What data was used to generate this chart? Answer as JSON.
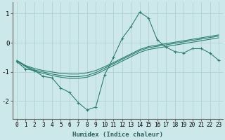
{
  "xlabel": "Humidex (Indice chaleur)",
  "bg_color": "#cce8ea",
  "grid_color": "#aacccc",
  "line_color": "#2e7d72",
  "x": [
    0,
    1,
    2,
    3,
    4,
    5,
    6,
    7,
    8,
    9,
    10,
    11,
    12,
    13,
    14,
    15,
    16,
    17,
    18,
    19,
    20,
    21,
    22,
    23
  ],
  "line1": [
    -0.65,
    -0.9,
    -0.95,
    -1.15,
    -1.2,
    -1.55,
    -1.7,
    -2.05,
    -2.3,
    -2.2,
    -1.1,
    -0.5,
    0.15,
    0.55,
    1.05,
    0.85,
    0.1,
    -0.15,
    -0.3,
    -0.35,
    -0.2,
    -0.2,
    -0.35,
    -0.6
  ],
  "line2": [
    -0.62,
    -0.82,
    -0.97,
    -1.05,
    -1.12,
    -1.18,
    -1.22,
    -1.22,
    -1.18,
    -1.08,
    -0.93,
    -0.78,
    -0.63,
    -0.48,
    -0.33,
    -0.23,
    -0.18,
    -0.13,
    -0.08,
    -0.03,
    0.02,
    0.07,
    0.12,
    0.17
  ],
  "line3": [
    -0.62,
    -0.8,
    -0.93,
    -1.0,
    -1.07,
    -1.12,
    -1.16,
    -1.16,
    -1.12,
    -1.02,
    -0.87,
    -0.72,
    -0.57,
    -0.42,
    -0.27,
    -0.17,
    -0.12,
    -0.07,
    -0.02,
    0.03,
    0.08,
    0.13,
    0.18,
    0.23
  ],
  "line4": [
    -0.6,
    -0.78,
    -0.88,
    -0.95,
    -1.0,
    -1.05,
    -1.07,
    -1.07,
    -1.03,
    -0.95,
    -0.82,
    -0.68,
    -0.53,
    -0.38,
    -0.23,
    -0.13,
    -0.08,
    -0.03,
    0.02,
    0.07,
    0.12,
    0.17,
    0.22,
    0.27
  ],
  "ylim": [
    -2.6,
    1.4
  ],
  "xlim": [
    -0.5,
    23.5
  ],
  "yticks": [
    -2,
    -1,
    0,
    1
  ],
  "xticks": [
    0,
    1,
    2,
    3,
    4,
    5,
    6,
    7,
    8,
    9,
    10,
    11,
    12,
    13,
    14,
    15,
    16,
    17,
    18,
    19,
    20,
    21,
    22,
    23
  ],
  "tick_fontsize": 5.5,
  "label_fontsize": 6.5
}
